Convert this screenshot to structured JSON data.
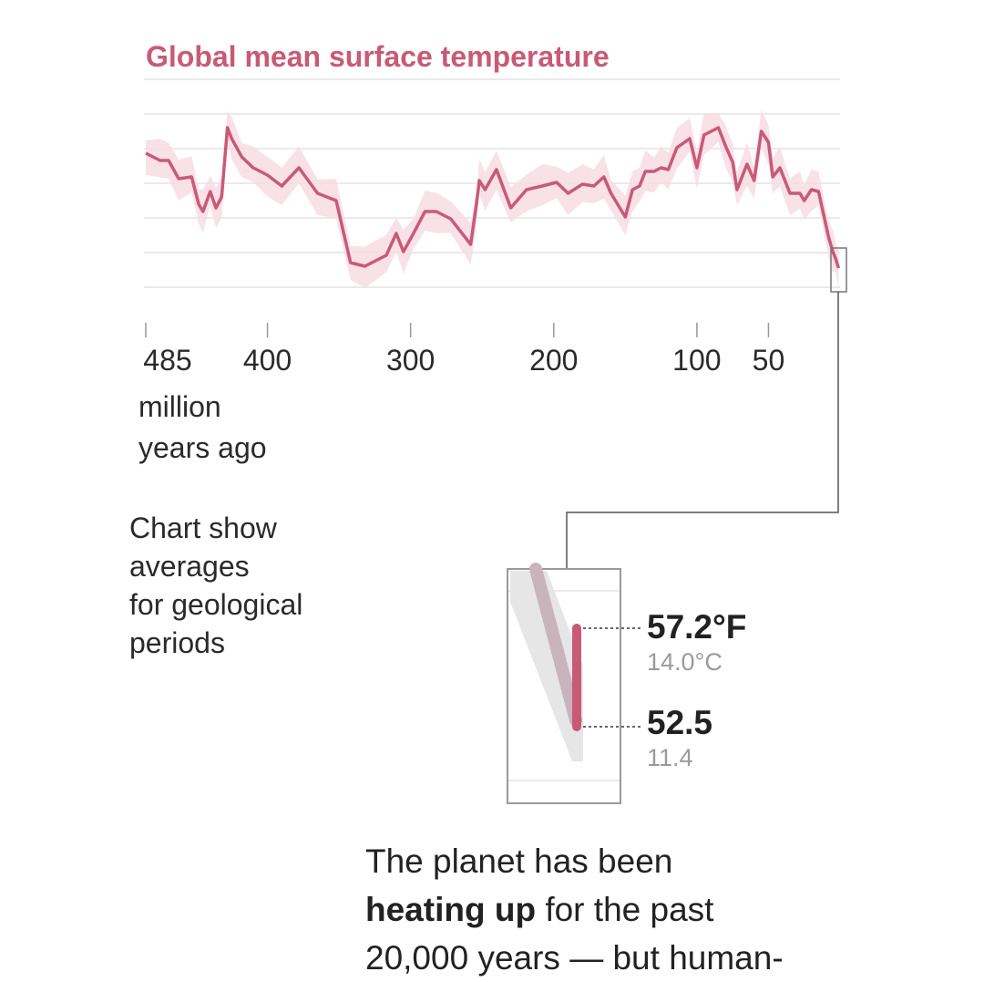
{
  "chart_data": {
    "type": "line",
    "title": "Global mean surface temperature",
    "xlabel": "million years ago",
    "x_ticks": [
      "485",
      "400",
      "300",
      "200",
      "100",
      "50"
    ],
    "x_reversed": true,
    "xlim": [
      485,
      0
    ],
    "series": [
      {
        "x": [
          485,
          475,
          469,
          462,
          453,
          448,
          445,
          440,
          436,
          432,
          428,
          425,
          418,
          410,
          400,
          390,
          378,
          365,
          352,
          342,
          332,
          317,
          310,
          305,
          298,
          290,
          282,
          272,
          258,
          254,
          252,
          248,
          240,
          230,
          219,
          208,
          198,
          190,
          180,
          172,
          165,
          160,
          150,
          145,
          140,
          136,
          130,
          125,
          120,
          114,
          105,
          100,
          95,
          85,
          80,
          75,
          72,
          65,
          60,
          55,
          50,
          47,
          42,
          35,
          28,
          25,
          20,
          15,
          8,
          5,
          3,
          1
        ],
        "y_position": [
          0.36,
          0.32,
          0.32,
          0.22,
          0.23,
          0.08,
          0.04,
          0.15,
          0.06,
          0.12,
          0.5,
          0.44,
          0.34,
          0.28,
          0.24,
          0.18,
          0.28,
          0.14,
          0.1,
          -0.24,
          -0.26,
          -0.2,
          -0.08,
          -0.18,
          -0.08,
          0.04,
          0.04,
          0.0,
          -0.14,
          0.08,
          0.21,
          0.16,
          0.27,
          0.06,
          0.16,
          0.18,
          0.2,
          0.14,
          0.19,
          0.18,
          0.23,
          0.14,
          0.01,
          0.16,
          0.18,
          0.26,
          0.26,
          0.28,
          0.27,
          0.39,
          0.44,
          0.28,
          0.46,
          0.5,
          0.4,
          0.31,
          0.16,
          0.3,
          0.21,
          0.48,
          0.42,
          0.23,
          0.28,
          0.14,
          0.14,
          0.1,
          0.16,
          0.15,
          -0.1,
          -0.18,
          -0.22,
          -0.27
        ]
      }
    ],
    "callout": {
      "high_f": "57.2°F",
      "high_c": "14.0°C",
      "low_f": "52.5",
      "low_c": "11.4"
    },
    "grid": true,
    "colors": {
      "line": "#c85a78",
      "band": "#f8dce4",
      "title": "#c85a78"
    }
  },
  "note": {
    "lines": [
      "Chart show",
      "averages",
      "for geological",
      "periods"
    ]
  },
  "bottom": {
    "line1": "The planet has been",
    "bold": "heating up",
    "line2_rest": " for the past",
    "line3": "20,000 years — but human-"
  }
}
